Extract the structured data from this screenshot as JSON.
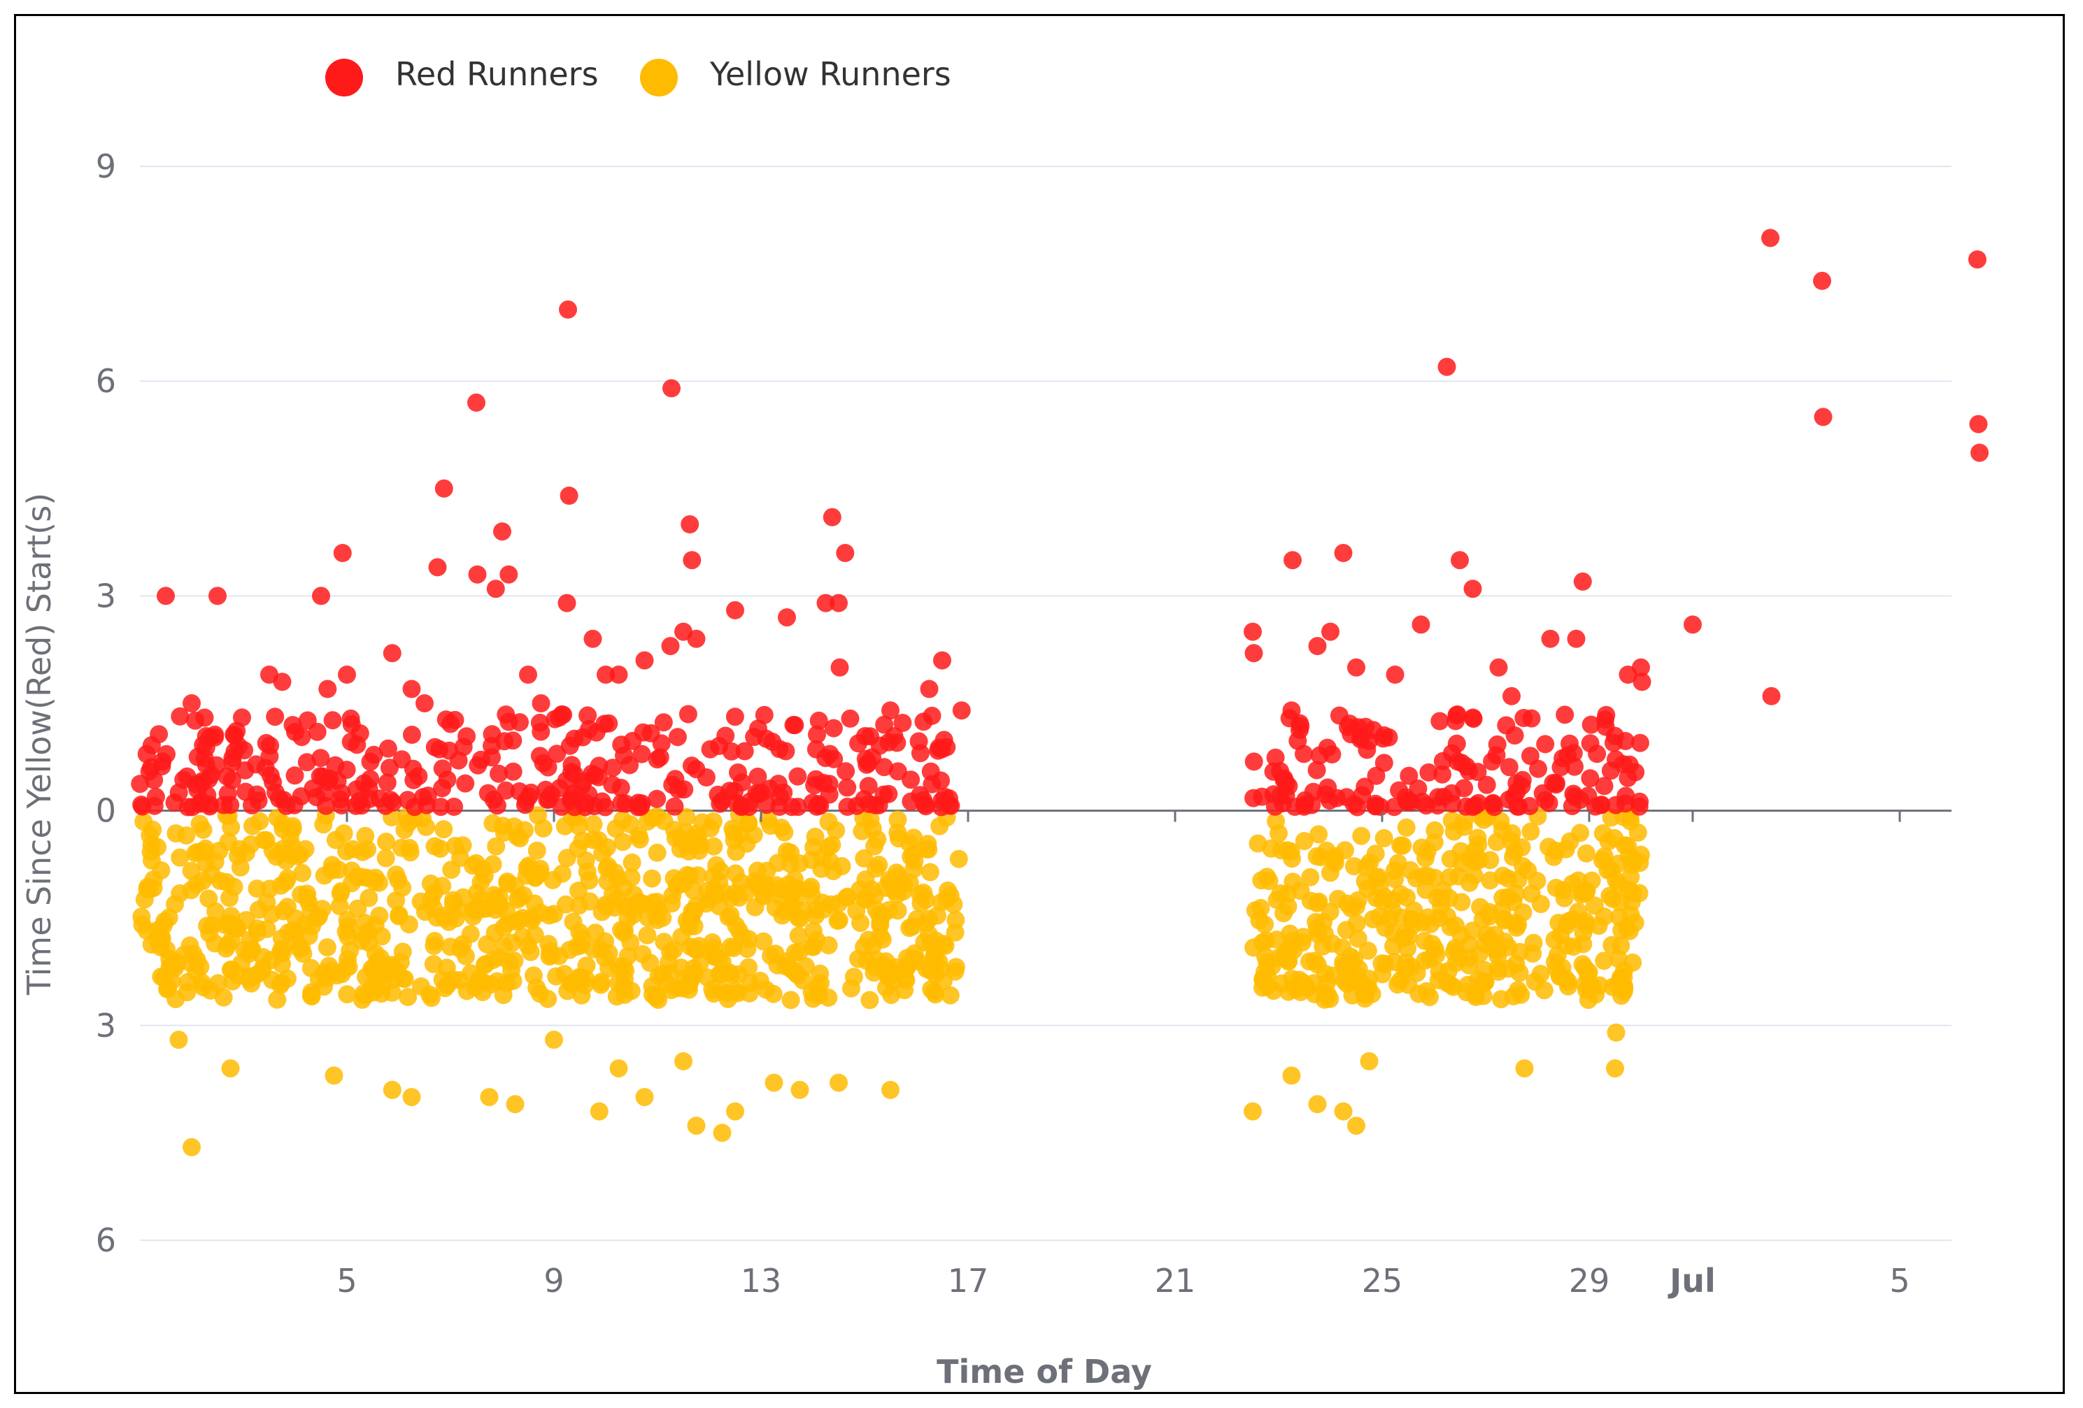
{
  "chart_data": {
    "type": "scatter",
    "xlabel": "Time of Day",
    "ylabel": "Time Since Yellow(Red) Start(s)",
    "x_axis": {
      "type": "time",
      "range": [
        "2023-06-01",
        "2023-07-06"
      ],
      "tick_labels": [
        {
          "date": "2023-06-05",
          "label": "5",
          "bold": false
        },
        {
          "date": "2023-06-09",
          "label": "9",
          "bold": false
        },
        {
          "date": "2023-06-13",
          "label": "13",
          "bold": false
        },
        {
          "date": "2023-06-17",
          "label": "17",
          "bold": false
        },
        {
          "date": "2023-06-21",
          "label": "21",
          "bold": false
        },
        {
          "date": "2023-06-25",
          "label": "25",
          "bold": false
        },
        {
          "date": "2023-06-29",
          "label": "29",
          "bold": false
        },
        {
          "date": "2023-07-01",
          "label": "Jul",
          "bold": true
        },
        {
          "date": "2023-07-05",
          "label": "5",
          "bold": false
        }
      ]
    },
    "y_axis": {
      "range": [
        -6,
        9
      ],
      "ticks": [
        {
          "value": 9,
          "label": "9"
        },
        {
          "value": 6,
          "label": "6"
        },
        {
          "value": 3,
          "label": "3"
        },
        {
          "value": 0,
          "label": "0"
        },
        {
          "value": -3,
          "label": "3"
        },
        {
          "value": -6,
          "label": "6"
        }
      ],
      "grid": true
    },
    "legend": {
      "position": "top-left",
      "items": [
        {
          "name": "Red Runners",
          "color": "#ff1a1a"
        },
        {
          "name": "Yellow Runners",
          "color": "#ffbb00"
        }
      ]
    },
    "series": [
      {
        "name": "Red Runners",
        "color": "#ff1a1a",
        "description": "sampled dense clusters above zero for days 1-16 and 22-29, plus sparse July points",
        "points": [
          [
            "2023-06-01T12:00",
            3.0
          ],
          [
            "2023-06-02T00:00",
            1.5
          ],
          [
            "2023-06-02T06:00",
            1.3
          ],
          [
            "2023-06-02T12:00",
            3.0
          ],
          [
            "2023-06-03T12:00",
            1.9
          ],
          [
            "2023-06-03T18:00",
            1.8
          ],
          [
            "2023-06-04T00:00",
            1.1
          ],
          [
            "2023-06-04T12:00",
            3.0
          ],
          [
            "2023-06-04T15:00",
            1.7
          ],
          [
            "2023-06-05T00:00",
            1.9
          ],
          [
            "2023-06-04T22:00",
            3.6
          ],
          [
            "2023-06-05T21:00",
            2.2
          ],
          [
            "2023-06-06T06:00",
            1.7
          ],
          [
            "2023-06-06T12:00",
            1.5
          ],
          [
            "2023-06-06T18:00",
            3.4
          ],
          [
            "2023-06-06T21:00",
            4.5
          ],
          [
            "2023-06-07T12:00",
            5.7
          ],
          [
            "2023-06-07T12:30",
            3.3
          ],
          [
            "2023-06-07T21:00",
            3.1
          ],
          [
            "2023-06-08T00:00",
            3.9
          ],
          [
            "2023-06-08T03:00",
            3.3
          ],
          [
            "2023-06-08T12:00",
            1.9
          ],
          [
            "2023-06-08T18:00",
            1.5
          ],
          [
            "2023-06-09T06:00",
            2.9
          ],
          [
            "2023-06-09T06:30",
            7.0
          ],
          [
            "2023-06-09T07:00",
            4.4
          ],
          [
            "2023-06-09T18:00",
            2.4
          ],
          [
            "2023-06-10T00:00",
            1.9
          ],
          [
            "2023-06-10T06:00",
            1.9
          ],
          [
            "2023-06-10T18:00",
            2.1
          ],
          [
            "2023-06-11T06:00",
            2.3
          ],
          [
            "2023-06-11T06:30",
            5.9
          ],
          [
            "2023-06-11T12:00",
            2.5
          ],
          [
            "2023-06-11T15:00",
            4.0
          ],
          [
            "2023-06-11T16:00",
            3.5
          ],
          [
            "2023-06-11T18:00",
            2.4
          ],
          [
            "2023-06-12T12:00",
            2.8
          ],
          [
            "2023-06-13T12:00",
            2.7
          ],
          [
            "2023-06-14T06:00",
            2.9
          ],
          [
            "2023-06-14T09:00",
            4.1
          ],
          [
            "2023-06-14T12:00",
            2.9
          ],
          [
            "2023-06-14T15:00",
            3.6
          ],
          [
            "2023-06-14T12:30",
            2.0
          ],
          [
            "2023-06-15T12:00",
            1.4
          ],
          [
            "2023-06-16T12:00",
            2.1
          ],
          [
            "2023-06-16T21:00",
            1.4
          ],
          [
            "2023-06-16T06:00",
            1.7
          ],
          [
            "2023-06-22T12:00",
            2.5
          ],
          [
            "2023-06-22T12:30",
            2.2
          ],
          [
            "2023-06-23T06:00",
            1.4
          ],
          [
            "2023-06-23T06:30",
            3.5
          ],
          [
            "2023-06-23T18:00",
            2.3
          ],
          [
            "2023-06-24T00:00",
            2.5
          ],
          [
            "2023-06-24T06:00",
            3.6
          ],
          [
            "2023-06-24T12:00",
            2.0
          ],
          [
            "2023-06-25T06:00",
            1.9
          ],
          [
            "2023-06-25T18:00",
            2.6
          ],
          [
            "2023-06-26T06:00",
            6.2
          ],
          [
            "2023-06-26T12:00",
            3.5
          ],
          [
            "2023-06-26T18:00",
            3.1
          ],
          [
            "2023-06-27T06:00",
            2.0
          ],
          [
            "2023-06-27T12:00",
            1.6
          ],
          [
            "2023-06-28T06:00",
            2.4
          ],
          [
            "2023-06-28T18:00",
            2.4
          ],
          [
            "2023-06-28T21:00",
            3.2
          ],
          [
            "2023-06-29T18:00",
            1.9
          ],
          [
            "2023-06-30T00:00",
            2.0
          ],
          [
            "2023-06-30T00:30",
            1.8
          ],
          [
            "2023-07-01T00:00",
            2.6
          ],
          [
            "2023-07-02T12:00",
            8.0
          ],
          [
            "2023-07-02T12:30",
            1.6
          ],
          [
            "2023-07-03T12:00",
            7.4
          ],
          [
            "2023-07-03T12:30",
            5.5
          ],
          [
            "2023-07-06T12:00",
            7.7
          ],
          [
            "2023-07-06T12:30",
            5.4
          ],
          [
            "2023-07-06T13:00",
            5.0
          ]
        ]
      },
      {
        "name": "Yellow Runners",
        "color": "#ffbb00",
        "description": "dense cluster of points between 0 and -2.8 for days 1-16 and 22-29, with outliers",
        "points": [
          [
            "2023-06-02T00:00",
            -4.7
          ],
          [
            "2023-06-01T18:00",
            -3.2
          ],
          [
            "2023-06-02T18:00",
            -3.6
          ],
          [
            "2023-06-04T18:00",
            -3.7
          ],
          [
            "2023-06-05T21:00",
            -3.9
          ],
          [
            "2023-06-06T06:00",
            -4.0
          ],
          [
            "2023-06-07T18:00",
            -4.0
          ],
          [
            "2023-06-08T06:00",
            -4.1
          ],
          [
            "2023-06-09T00:00",
            -3.2
          ],
          [
            "2023-06-09T21:00",
            -4.2
          ],
          [
            "2023-06-10T06:00",
            -3.6
          ],
          [
            "2023-06-10T18:00",
            -4.0
          ],
          [
            "2023-06-11T18:00",
            -4.4
          ],
          [
            "2023-06-12T06:00",
            -4.5
          ],
          [
            "2023-06-11T12:00",
            -3.5
          ],
          [
            "2023-06-12T12:00",
            -4.2
          ],
          [
            "2023-06-13T06:00",
            -3.8
          ],
          [
            "2023-06-13T18:00",
            -3.9
          ],
          [
            "2023-06-14T12:00",
            -3.8
          ],
          [
            "2023-06-15T12:00",
            -3.9
          ],
          [
            "2023-06-22T12:00",
            -4.2
          ],
          [
            "2023-06-23T06:00",
            -3.7
          ],
          [
            "2023-06-23T18:00",
            -4.1
          ],
          [
            "2023-06-24T06:00",
            -4.2
          ],
          [
            "2023-06-24T12:00",
            -4.4
          ],
          [
            "2023-06-24T18:00",
            -3.5
          ],
          [
            "2023-06-27T18:00",
            -3.6
          ],
          [
            "2023-06-29T12:00",
            -3.6
          ],
          [
            "2023-06-29T12:30",
            -3.1
          ]
        ]
      }
    ]
  }
}
